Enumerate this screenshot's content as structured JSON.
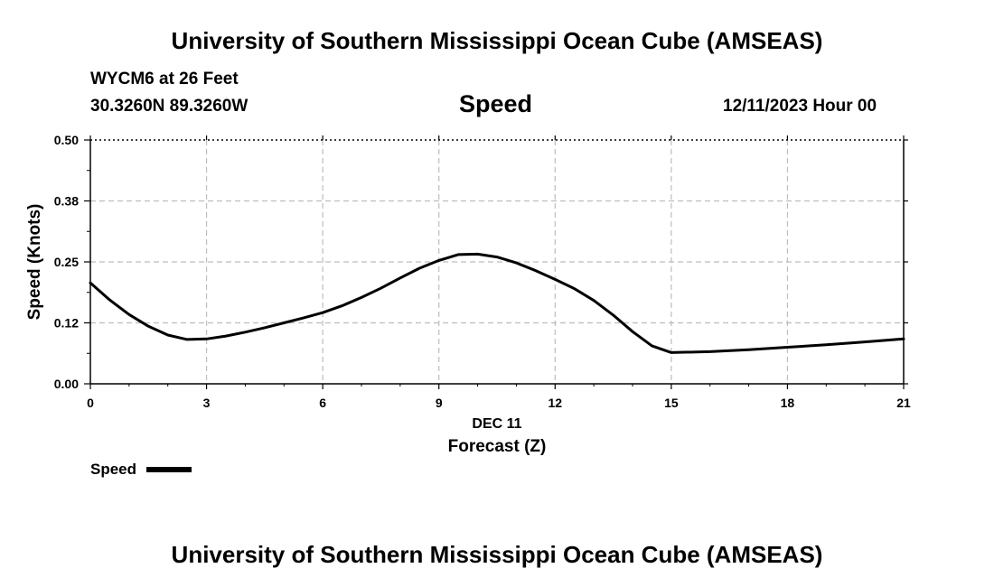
{
  "header": {
    "title": "University of Southern Mississippi Ocean Cube (AMSEAS)",
    "station": "WYCM6 at 26 Feet",
    "coords": "30.3260N  89.3260W",
    "variable": "Speed",
    "datetime": "12/11/2023 Hour 00"
  },
  "footer": {
    "title": "University of Southern Mississippi Ocean Cube (AMSEAS)"
  },
  "legend": {
    "label": "Speed"
  },
  "chart_data": {
    "type": "line",
    "title": "Speed",
    "xlabel": "Forecast (Z)",
    "xsublabel": "DEC 11",
    "ylabel": "Speed (Knots)",
    "xlim": [
      0,
      21
    ],
    "ylim": [
      0,
      0.5
    ],
    "xticks": [
      0,
      3,
      6,
      9,
      12,
      15,
      18,
      21
    ],
    "xtick_labels": [
      "0",
      "3",
      "6",
      "9",
      "12",
      "15",
      "18",
      "21"
    ],
    "yticks": [
      0,
      0.125,
      0.25,
      0.375,
      0.5
    ],
    "ytick_labels": [
      "0.00",
      "0.12",
      "0.25",
      "0.38",
      "0.50"
    ],
    "grid": true,
    "series": [
      {
        "name": "Speed",
        "x": [
          0,
          0.5,
          1,
          1.5,
          2,
          2.5,
          3,
          3.5,
          4,
          4.5,
          5,
          5.5,
          6,
          6.5,
          7,
          7.5,
          8,
          8.5,
          9,
          9.5,
          10,
          10.5,
          11,
          11.5,
          12,
          12.5,
          13,
          13.5,
          14,
          14.5,
          15,
          16,
          17,
          18,
          19,
          20,
          21
        ],
        "y": [
          0.207,
          0.172,
          0.142,
          0.118,
          0.1,
          0.091,
          0.092,
          0.098,
          0.106,
          0.115,
          0.125,
          0.135,
          0.146,
          0.16,
          0.177,
          0.196,
          0.217,
          0.237,
          0.253,
          0.265,
          0.266,
          0.26,
          0.248,
          0.232,
          0.214,
          0.195,
          0.171,
          0.141,
          0.107,
          0.078,
          0.064,
          0.066,
          0.07,
          0.075,
          0.08,
          0.086,
          0.092
        ]
      }
    ]
  }
}
